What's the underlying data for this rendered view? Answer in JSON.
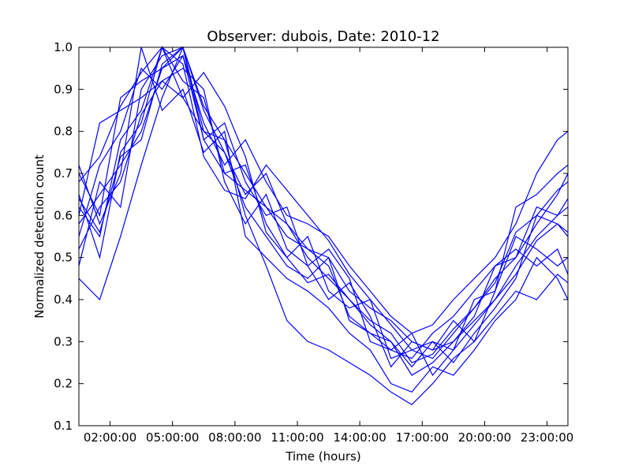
{
  "chart_data": {
    "type": "line",
    "title": "Observer: dubois, Date: 2010-12",
    "xlabel": "Time (hours)",
    "ylabel": "Normalized detection count",
    "xlim": [
      0.5,
      24
    ],
    "ylim": [
      0.1,
      1.0
    ],
    "x_ticks": [
      {
        "value": 2,
        "label": "02:00:00"
      },
      {
        "value": 5,
        "label": "05:00:00"
      },
      {
        "value": 8,
        "label": "08:00:00"
      },
      {
        "value": 11,
        "label": "11:00:00"
      },
      {
        "value": 14,
        "label": "14:00:00"
      },
      {
        "value": 17,
        "label": "17:00:00"
      },
      {
        "value": 20,
        "label": "20:00:00"
      },
      {
        "value": 23,
        "label": "23:00:00"
      }
    ],
    "y_ticks": [
      {
        "value": 0.1,
        "label": "0.1"
      },
      {
        "value": 0.2,
        "label": "0.2"
      },
      {
        "value": 0.3,
        "label": "0.3"
      },
      {
        "value": 0.4,
        "label": "0.4"
      },
      {
        "value": 0.5,
        "label": "0.5"
      },
      {
        "value": 0.6,
        "label": "0.6"
      },
      {
        "value": 0.7,
        "label": "0.7"
      },
      {
        "value": 0.8,
        "label": "0.8"
      },
      {
        "value": 0.9,
        "label": "0.9"
      },
      {
        "value": 1.0,
        "label": "1.0"
      }
    ],
    "grid": false,
    "legend": "none",
    "series_color": "#0000ff",
    "x": [
      0.5,
      1.5,
      2.5,
      3.5,
      4.5,
      5.5,
      6.5,
      7.5,
      8.5,
      9.5,
      10.5,
      11.5,
      12.5,
      13.5,
      14.5,
      15.5,
      16.5,
      17.5,
      18.5,
      19.5,
      20.5,
      21.5,
      22.5,
      23.5,
      24
    ],
    "series": [
      {
        "values": [
          0.62,
          0.55,
          0.78,
          0.85,
          1.0,
          0.88,
          0.8,
          0.78,
          0.7,
          0.62,
          0.55,
          0.52,
          0.5,
          0.42,
          0.38,
          0.35,
          0.3,
          0.28,
          0.3,
          0.35,
          0.4,
          0.48,
          0.55,
          0.6,
          0.62
        ]
      },
      {
        "values": [
          0.7,
          0.6,
          0.88,
          0.92,
          0.95,
          1.0,
          0.85,
          0.75,
          0.65,
          0.7,
          0.58,
          0.5,
          0.45,
          0.4,
          0.35,
          0.32,
          0.25,
          0.27,
          0.33,
          0.38,
          0.45,
          0.5,
          0.58,
          0.65,
          0.7
        ]
      },
      {
        "values": [
          0.55,
          0.72,
          0.8,
          0.95,
          0.9,
          0.98,
          0.78,
          0.82,
          0.68,
          0.6,
          0.62,
          0.48,
          0.52,
          0.45,
          0.3,
          0.28,
          0.32,
          0.22,
          0.28,
          0.4,
          0.42,
          0.55,
          0.52,
          0.48,
          0.5
        ]
      },
      {
        "values": [
          0.65,
          0.5,
          0.75,
          0.82,
          1.0,
          0.92,
          0.88,
          0.7,
          0.72,
          0.58,
          0.5,
          0.55,
          0.42,
          0.38,
          0.4,
          0.26,
          0.28,
          0.3,
          0.25,
          0.32,
          0.38,
          0.45,
          0.6,
          0.58,
          0.55
        ]
      },
      {
        "values": [
          0.48,
          0.68,
          0.62,
          0.9,
          0.98,
          1.0,
          0.8,
          0.75,
          0.62,
          0.55,
          0.48,
          0.45,
          0.5,
          0.35,
          0.32,
          0.3,
          0.22,
          0.25,
          0.3,
          0.36,
          0.48,
          0.52,
          0.48,
          0.52,
          0.46
        ]
      },
      {
        "values": [
          0.6,
          0.82,
          0.85,
          0.88,
          0.92,
          0.95,
          0.9,
          0.68,
          0.58,
          0.65,
          0.52,
          0.48,
          0.4,
          0.44,
          0.36,
          0.24,
          0.3,
          0.28,
          0.35,
          0.3,
          0.42,
          0.62,
          0.65,
          0.7,
          0.72
        ]
      },
      {
        "values": [
          0.72,
          0.58,
          0.7,
          1.0,
          0.85,
          0.9,
          0.75,
          0.8,
          0.55,
          0.5,
          0.45,
          0.42,
          0.38,
          0.32,
          0.28,
          0.2,
          0.18,
          0.24,
          0.22,
          0.28,
          0.35,
          0.4,
          0.5,
          0.45,
          0.4
        ]
      },
      {
        "values": [
          0.58,
          0.65,
          0.72,
          0.8,
          0.95,
          0.98,
          0.82,
          0.72,
          0.78,
          0.68,
          0.6,
          0.58,
          0.55,
          0.48,
          0.42,
          0.36,
          0.32,
          0.34,
          0.4,
          0.45,
          0.5,
          0.58,
          0.7,
          0.78,
          0.8
        ]
      },
      {
        "values": [
          0.45,
          0.4,
          0.55,
          0.72,
          0.88,
          1.0,
          0.86,
          0.78,
          0.6,
          0.48,
          0.35,
          0.3,
          0.28,
          0.25,
          0.22,
          0.18,
          0.15,
          0.2,
          0.26,
          0.3,
          0.36,
          0.42,
          0.4,
          0.46,
          0.44
        ]
      },
      {
        "values": [
          0.68,
          0.74,
          0.86,
          0.94,
          1.0,
          0.96,
          0.74,
          0.66,
          0.64,
          0.72,
          0.66,
          0.6,
          0.54,
          0.46,
          0.4,
          0.34,
          0.28,
          0.26,
          0.32,
          0.38,
          0.44,
          0.56,
          0.6,
          0.66,
          0.68
        ]
      },
      {
        "values": [
          0.52,
          0.62,
          0.68,
          0.84,
          0.92,
          0.88,
          0.94,
          0.86,
          0.74,
          0.56,
          0.5,
          0.44,
          0.46,
          0.4,
          0.34,
          0.3,
          0.24,
          0.3,
          0.28,
          0.34,
          0.4,
          0.46,
          0.54,
          0.58,
          0.56
        ]
      },
      {
        "values": [
          0.64,
          0.56,
          0.74,
          0.78,
          0.96,
          1.0,
          0.78,
          0.7,
          0.66,
          0.62,
          0.58,
          0.52,
          0.48,
          0.36,
          0.32,
          0.28,
          0.26,
          0.32,
          0.36,
          0.42,
          0.48,
          0.5,
          0.62,
          0.6,
          0.64
        ]
      }
    ]
  }
}
